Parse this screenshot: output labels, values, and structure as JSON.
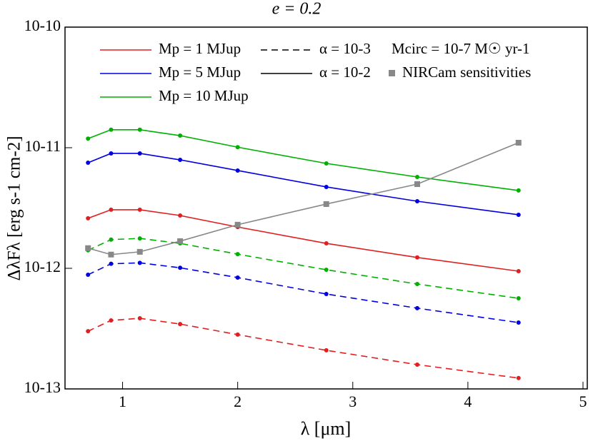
{
  "chart_data": {
    "type": "line",
    "title": "e = 0.2",
    "x_label": "λ [μm]",
    "y_label": "ΔλFλ [erg s-1 cm-2]",
    "x": [
      0.7,
      0.9,
      1.15,
      1.5,
      2.0,
      2.77,
      3.56,
      4.44
    ],
    "xlim": [
      0.5,
      5
    ],
    "xticks": [
      1,
      2,
      3,
      4,
      5
    ],
    "ylim": [
      1e-13,
      1e-10
    ],
    "log_y": true,
    "yticks": [
      {
        "value": 1e-13,
        "label": "10-13"
      },
      {
        "value": 1e-12,
        "label": "10-12"
      },
      {
        "value": 1e-11,
        "label": "10-11"
      },
      {
        "value": 1e-10,
        "label": "10-10"
      }
    ],
    "series": [
      {
        "color": "#00b000",
        "dashed": false,
        "values": [
          1.19e-11,
          1.41e-11,
          1.41e-11,
          1.26e-11,
          1.01e-11,
          7.41e-12,
          5.72e-12,
          4.42e-12
        ]
      },
      {
        "color": "#0000e0",
        "dashed": false,
        "values": [
          7.51e-12,
          8.97e-12,
          8.97e-12,
          7.93e-12,
          6.47e-12,
          4.73e-12,
          3.6e-12,
          2.78e-12
        ]
      },
      {
        "color": "#e02020",
        "dashed": false,
        "values": [
          2.6e-12,
          3.06e-12,
          3.06e-12,
          2.74e-12,
          2.2e-12,
          1.61e-12,
          1.23e-12,
          9.47e-13
        ]
      },
      {
        "color": "#00b000",
        "dashed": true,
        "values": [
          1.41e-12,
          1.73e-12,
          1.77e-12,
          1.61e-12,
          1.31e-12,
          9.73e-13,
          7.41e-13,
          5.64e-13
        ]
      },
      {
        "color": "#0000e0",
        "dashed": true,
        "values": [
          8.85e-13,
          1.09e-12,
          1.11e-12,
          1.01e-12,
          8.38e-13,
          6.12e-13,
          4.67e-13,
          3.55e-13
        ]
      },
      {
        "color": "#e02020",
        "dashed": true,
        "values": [
          3.01e-13,
          3.7e-13,
          3.85e-13,
          3.45e-13,
          2.82e-13,
          2.09e-13,
          1.59e-13,
          1.23e-13
        ]
      },
      {
        "name": "NIRCam sensitivities",
        "color": "#888888",
        "dashed": false,
        "marker": "square",
        "values": [
          1.47e-12,
          1.3e-12,
          1.37e-12,
          1.68e-12,
          2.3e-12,
          3.41e-12,
          4.99e-12,
          1.1e-11
        ]
      }
    ],
    "color_legend": [
      {
        "label": "Mp = 1 MJup",
        "color": "#e02020"
      },
      {
        "label": "Mp = 5 MJup",
        "color": "#0000e0"
      },
      {
        "label": "Mp = 10 MJup",
        "color": "#00b000"
      }
    ],
    "style_legend": [
      {
        "label": "α = 10-3",
        "dashed": true
      },
      {
        "label": "α = 10-2",
        "dashed": false
      }
    ],
    "annotation": "Mcirc = 10-7 M☉ yr-1"
  }
}
